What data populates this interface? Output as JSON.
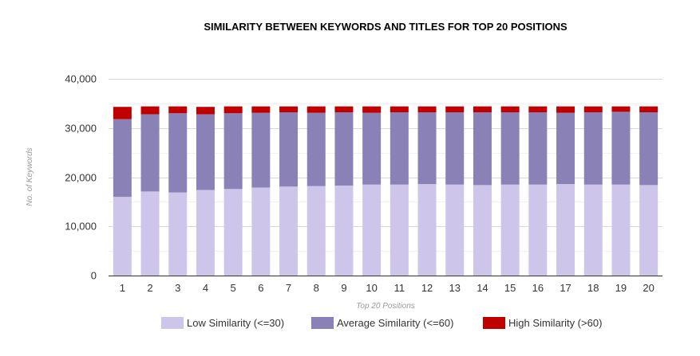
{
  "chart_data": {
    "type": "bar",
    "stacked": true,
    "title": "SIMILARITY BETWEEN KEYWORDS AND TITLES FOR TOP 20 POSITIONS",
    "xlabel": "Top 20 Positions",
    "ylabel": "No. of Keywords",
    "ylim": [
      0,
      40000
    ],
    "yticks": [
      "0",
      "10,000",
      "20,000",
      "30,000",
      "40,000"
    ],
    "ytick_values": [
      0,
      10000,
      20000,
      30000,
      40000
    ],
    "grid": true,
    "legend_position": "bottom",
    "categories": [
      "1",
      "2",
      "3",
      "4",
      "5",
      "6",
      "7",
      "8",
      "9",
      "10",
      "11",
      "12",
      "13",
      "14",
      "15",
      "16",
      "17",
      "18",
      "19",
      "20"
    ],
    "series": [
      {
        "name": "Low Similarity (<=30)",
        "color": "#cdc6ea",
        "values": [
          16000,
          17100,
          16900,
          17400,
          17600,
          17900,
          18100,
          18200,
          18300,
          18500,
          18500,
          18600,
          18500,
          18400,
          18500,
          18500,
          18600,
          18500,
          18500,
          18400
        ]
      },
      {
        "name": "Average Similarity (<=60)",
        "color": "#8a82b6",
        "values": [
          15800,
          15700,
          16100,
          15400,
          15400,
          15200,
          15100,
          14900,
          14900,
          14600,
          14700,
          14600,
          14700,
          14800,
          14700,
          14700,
          14500,
          14700,
          14800,
          14800
        ]
      },
      {
        "name": "High Similarity (>60)",
        "color": "#c00000",
        "values": [
          2500,
          1600,
          1400,
          1500,
          1400,
          1300,
          1200,
          1300,
          1200,
          1300,
          1200,
          1200,
          1200,
          1200,
          1200,
          1200,
          1300,
          1200,
          1100,
          1200
        ]
      }
    ]
  }
}
